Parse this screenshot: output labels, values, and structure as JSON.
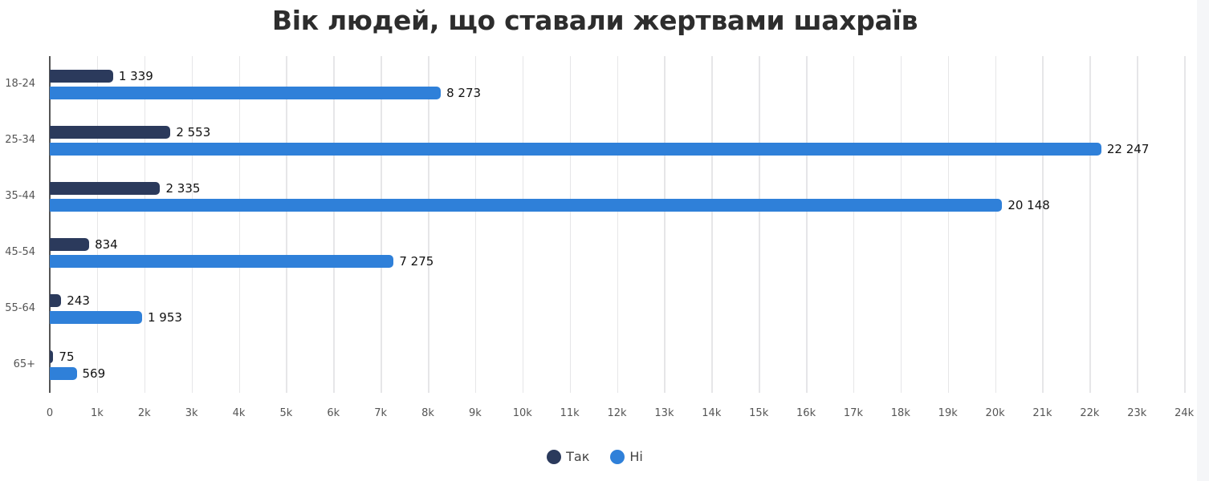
{
  "chart_data": {
    "type": "bar",
    "orientation": "horizontal",
    "title": "Вік людей, що ставали жертвами шахраїв",
    "xlabel": "",
    "ylabel": "",
    "categories": [
      "18-24",
      "25-34",
      "35-44",
      "45-54",
      "55-64",
      "65+"
    ],
    "series": [
      {
        "name": "Так",
        "color": "#2b3a5c",
        "values": [
          1339,
          2553,
          2335,
          834,
          243,
          75
        ],
        "labels": [
          "1 339",
          "2 553",
          "2 335",
          "834",
          "243",
          "75"
        ]
      },
      {
        "name": "Ні",
        "color": "#2f80d9",
        "values": [
          8273,
          22247,
          20148,
          7275,
          1953,
          569
        ],
        "labels": [
          "8 273",
          "22 247",
          "20 148",
          "7 275",
          "1 953",
          "569"
        ]
      }
    ],
    "xlim": [
      0,
      24000
    ],
    "xticks": [
      "0",
      "1k",
      "2k",
      "3k",
      "4k",
      "5k",
      "6k",
      "7k",
      "8k",
      "9k",
      "10k",
      "11k",
      "12k",
      "13k",
      "14k",
      "15k",
      "16k",
      "17k",
      "18k",
      "19k",
      "20k",
      "21k",
      "22k",
      "23k",
      "24k"
    ],
    "grid": true,
    "legend_position": "bottom"
  },
  "legend": {
    "items": [
      {
        "label": "Так",
        "color": "#2b3a5c"
      },
      {
        "label": "Ні",
        "color": "#2f80d9"
      }
    ]
  }
}
